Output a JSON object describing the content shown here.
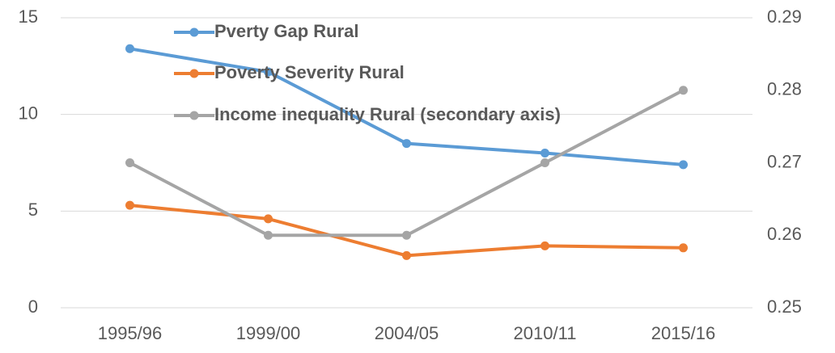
{
  "chart_data": {
    "type": "line",
    "categories": [
      "1995/96",
      "1999/00",
      "2004/05",
      "2010/11",
      "2015/16"
    ],
    "series": [
      {
        "name": "Pverty Gap Rural",
        "color": "#5b9bd5",
        "values": [
          13.4,
          12.2,
          8.5,
          8.0,
          7.4
        ]
      },
      {
        "name": "Poverty Severity Rural",
        "color": "#ed7d31",
        "values": [
          5.3,
          4.6,
          2.7,
          3.2,
          3.1
        ]
      },
      {
        "name": "Income inequality Rural (secondary axis)",
        "color": "#a5a5a5",
        "axis": "y2",
        "values": [
          0.27,
          0.26,
          0.26,
          0.27,
          0.28
        ]
      }
    ],
    "ylim": [
      0,
      15
    ],
    "yticks": [
      0,
      5,
      10,
      15
    ],
    "y2lim": [
      0.25,
      0.29
    ],
    "y2ticks": [
      0.25,
      0.26,
      0.27,
      0.28,
      0.29
    ],
    "grid": true,
    "legend": "upper left"
  }
}
